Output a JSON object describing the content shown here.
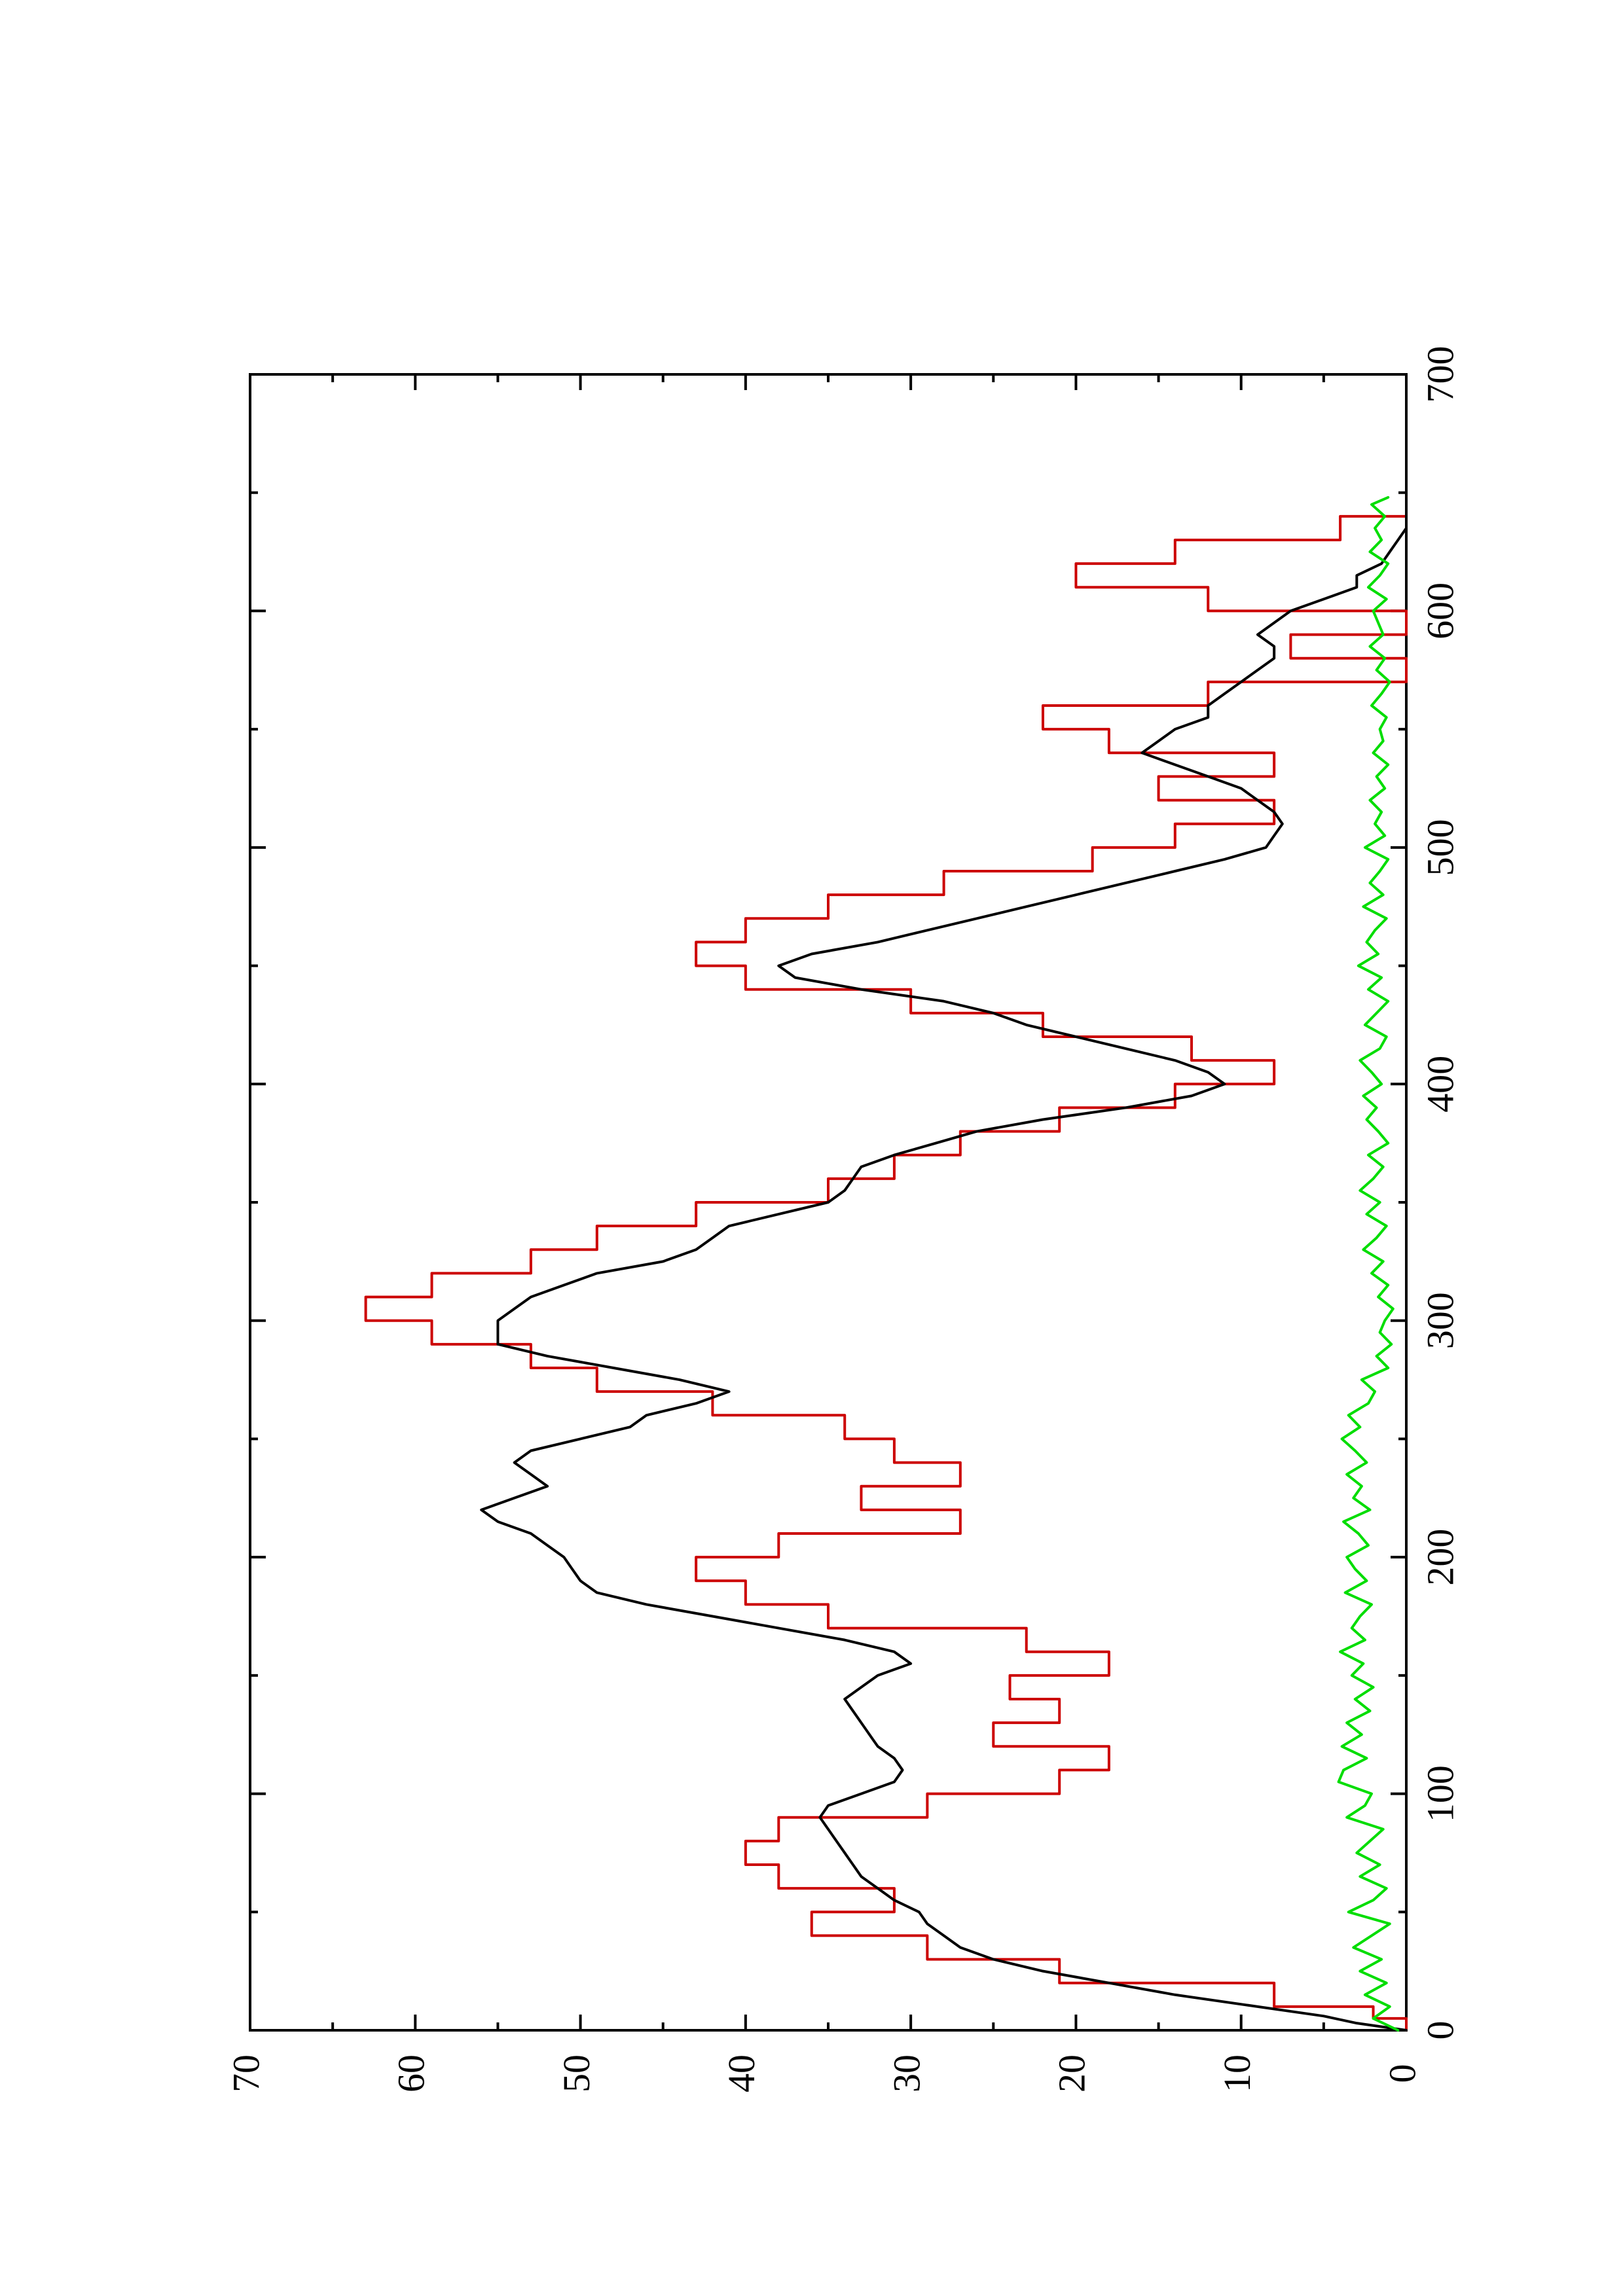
{
  "chart_data": {
    "type": "line",
    "title": "",
    "xlabel": "",
    "ylabel": "",
    "orientation": "rotated-90-counterclockwise",
    "xlim": [
      0,
      700
    ],
    "ylim": [
      0,
      70
    ],
    "x_ticks": [
      0,
      100,
      200,
      300,
      400,
      500,
      600,
      700
    ],
    "y_ticks": [
      0,
      10,
      20,
      30,
      40,
      50,
      60,
      70
    ],
    "x_tick_labels": [
      "0",
      "100",
      "200",
      "300",
      "400",
      "500",
      "600",
      "700"
    ],
    "y_tick_labels": [
      "0",
      "10",
      "20",
      "30",
      "40",
      "50",
      "60",
      "70"
    ],
    "grid": false,
    "legend": "none",
    "series": [
      {
        "color": "#cc0000",
        "style": "step",
        "x": [
          0,
          5,
          10,
          20,
          30,
          40,
          50,
          60,
          70,
          80,
          90,
          100,
          110,
          120,
          130,
          140,
          150,
          160,
          170,
          180,
          190,
          200,
          210,
          220,
          230,
          240,
          250,
          260,
          270,
          280,
          290,
          300,
          310,
          320,
          330,
          340,
          350,
          360,
          370,
          380,
          390,
          400,
          410,
          420,
          430,
          440,
          450,
          460,
          470,
          480,
          490,
          500,
          510,
          520,
          530,
          540,
          550,
          560,
          570,
          580,
          590,
          600,
          610,
          620,
          630,
          640,
          648
        ],
        "y": [
          0,
          2,
          8,
          21,
          29,
          36,
          31,
          38,
          40,
          38,
          29,
          21,
          18,
          25,
          21,
          24,
          18,
          23,
          35,
          40,
          43,
          38,
          27,
          33,
          27,
          31,
          34,
          42,
          49,
          53,
          59,
          63,
          59,
          53,
          49,
          43,
          35,
          31,
          27,
          21,
          14,
          8,
          13,
          22,
          30,
          40,
          43,
          40,
          35,
          28,
          19,
          14,
          8,
          15,
          8,
          18,
          22,
          12,
          0,
          7,
          0,
          12,
          20,
          14,
          4,
          0,
          0
        ]
      },
      {
        "color": "#000000",
        "style": "line",
        "x": [
          0,
          3,
          6,
          10,
          15,
          20,
          25,
          30,
          35,
          40,
          45,
          50,
          55,
          60,
          65,
          70,
          75,
          80,
          85,
          90,
          95,
          100,
          105,
          110,
          115,
          120,
          125,
          130,
          135,
          140,
          145,
          150,
          155,
          160,
          165,
          170,
          175,
          180,
          185,
          190,
          195,
          200,
          205,
          210,
          215,
          220,
          225,
          230,
          235,
          240,
          245,
          250,
          255,
          260,
          265,
          270,
          275,
          280,
          285,
          290,
          295,
          300,
          305,
          310,
          315,
          320,
          325,
          330,
          335,
          340,
          345,
          350,
          355,
          360,
          365,
          370,
          375,
          380,
          385,
          390,
          395,
          400,
          405,
          410,
          415,
          420,
          425,
          430,
          435,
          440,
          445,
          450,
          455,
          460,
          465,
          470,
          475,
          480,
          485,
          490,
          495,
          500,
          505,
          510,
          515,
          520,
          525,
          530,
          535,
          540,
          545,
          550,
          555,
          560,
          565,
          570,
          575,
          580,
          585,
          590,
          595,
          600,
          605,
          610,
          615,
          620,
          625,
          630,
          635,
          640,
          645,
          648
        ],
        "y": [
          0,
          3,
          5,
          9,
          14,
          18,
          22,
          25,
          27,
          28,
          29,
          29.5,
          31,
          32,
          33,
          33.5,
          34,
          34.5,
          35,
          35.5,
          35,
          33,
          31,
          30.5,
          31,
          32,
          32.5,
          33,
          33.5,
          34,
          33,
          32,
          30,
          31,
          34,
          38,
          42,
          46,
          49,
          50,
          50.5,
          51,
          52,
          53,
          55,
          56,
          54,
          52,
          53,
          54,
          53,
          50,
          47,
          46,
          43,
          41,
          44,
          48,
          52,
          55,
          55,
          55,
          54,
          53,
          51,
          49,
          45,
          43,
          42,
          41,
          38,
          35,
          34,
          33.5,
          33,
          31,
          28.5,
          26,
          22,
          17,
          13,
          11,
          12,
          14,
          17,
          20,
          23,
          25,
          28,
          33,
          37,
          38,
          36,
          32,
          29,
          26,
          23,
          20,
          17,
          14,
          11,
          8.5,
          8,
          7.5,
          8,
          9,
          10,
          12,
          14,
          16,
          15,
          14,
          12,
          12,
          11,
          10,
          9,
          8,
          8,
          9,
          8,
          7,
          5,
          3,
          3,
          1.5,
          1,
          0.5,
          0,
          0,
          0,
          0
        ]
      },
      {
        "color": "#00dd00",
        "style": "line",
        "x": [
          0,
          5,
          10,
          15,
          20,
          25,
          30,
          35,
          40,
          45,
          50,
          55,
          60,
          65,
          70,
          75,
          80,
          85,
          90,
          95,
          100,
          105,
          110,
          115,
          120,
          125,
          130,
          135,
          140,
          145,
          150,
          155,
          160,
          165,
          170,
          175,
          180,
          185,
          190,
          195,
          200,
          205,
          210,
          215,
          220,
          225,
          230,
          235,
          240,
          245,
          250,
          255,
          260,
          265,
          270,
          275,
          280,
          285,
          290,
          295,
          300,
          305,
          310,
          315,
          320,
          325,
          330,
          335,
          340,
          345,
          350,
          355,
          360,
          365,
          370,
          375,
          380,
          385,
          390,
          395,
          400,
          405,
          410,
          415,
          420,
          425,
          430,
          435,
          440,
          445,
          450,
          455,
          460,
          465,
          470,
          475,
          480,
          485,
          490,
          495,
          500,
          505,
          510,
          515,
          520,
          525,
          530,
          535,
          540,
          545,
          550,
          555,
          560,
          565,
          570,
          575,
          580,
          585,
          590,
          595,
          600,
          605,
          610,
          615,
          620,
          625,
          630,
          635,
          640,
          645,
          648
        ],
        "y": [
          0.5,
          2,
          1,
          2.5,
          1.2,
          2.8,
          1.5,
          3.2,
          2.1,
          1,
          3.5,
          2,
          1.2,
          2.8,
          1.6,
          3,
          2.2,
          1.4,
          3.6,
          2.5,
          2.1,
          4.1,
          3.8,
          2.4,
          3.9,
          2.7,
          3.6,
          2.2,
          3.1,
          2,
          3.3,
          2.6,
          4,
          2.5,
          3.3,
          2.8,
          2.1,
          3.7,
          2.4,
          3.1,
          3.6,
          2.3,
          2.9,
          3.8,
          2.2,
          3.2,
          2.7,
          3.6,
          2.4,
          3.1,
          3.9,
          2.8,
          3.5,
          2.3,
          1.9,
          2.7,
          1.1,
          1.8,
          0.9,
          1.6,
          1.3,
          0.8,
          1.7,
          1.1,
          2.1,
          1.4,
          2.6,
          1.8,
          1.2,
          2.4,
          1.6,
          2.8,
          2,
          1.4,
          2.3,
          1.1,
          1.7,
          2.4,
          1.8,
          2.6,
          1.5,
          2.1,
          2.8,
          1.6,
          1.2,
          2.5,
          1.8,
          1.1,
          2.3,
          1.5,
          2.9,
          1.7,
          2.4,
          1.9,
          1.2,
          2.6,
          1.4,
          2.2,
          1.6,
          1.1,
          2.5,
          1.3,
          1.9,
          1.5,
          2.2,
          1.3,
          1.8,
          1.1,
          2,
          1.4,
          1.6,
          1.2,
          2.1,
          1.5,
          1,
          1.8,
          1.3,
          2.2,
          1.4,
          1.7,
          2,
          1.2,
          2.3,
          1.6,
          1.1,
          2.2,
          1.5,
          1.9,
          1.3,
          2.1,
          1.1
        ]
      }
    ]
  }
}
